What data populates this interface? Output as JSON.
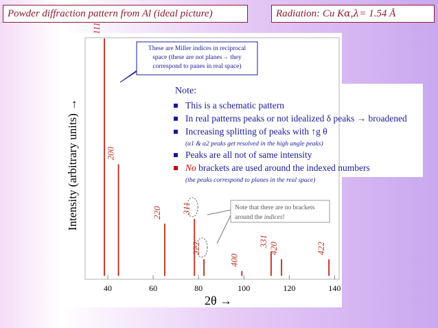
{
  "header": {
    "title": "Powder diffraction pattern from Al (ideal picture)",
    "radiation_prefix": "Radiation: Cu K",
    "radiation_alpha": "α",
    "radiation_sep": ", ",
    "radiation_lambda": "λ",
    "radiation_value": " = 1.54 Å"
  },
  "callout_top": {
    "lines": [
      "These are Miller indices in reciprocal",
      "space (these are not planes→ they",
      "correspond to panes in real space)"
    ]
  },
  "notes": {
    "heading": "Note:",
    "items": [
      {
        "text": "This is a schematic pattern",
        "sub": ""
      },
      {
        "text": "In real patterns peaks or not idealized δ peaks → broadened",
        "sub": ""
      },
      {
        "text": "Increasing splitting of peaks with ↑g θ",
        "sub": "(α1 & α2 peaks get resolved in the high angle peaks)"
      },
      {
        "text": "Peaks are all not of same intensity",
        "sub": ""
      },
      {
        "text_em": "No",
        "text": " brackets are used around the indexed numbers",
        "sub": "(the peaks correspond to planes in the real space)"
      }
    ]
  },
  "callout_bottom": {
    "line1": "Note that there are no brackets",
    "line2_prefix": "around the ",
    "line2_em": "indices",
    "line2_suffix": "!"
  },
  "colors": {
    "peak": "#c0392b",
    "text_blue": "#1a1a99",
    "title": "#8a1c2f",
    "bullet": "#1a1a99",
    "bullet_last": "#cc0000"
  },
  "chart_data": {
    "type": "bar",
    "xlabel": "2θ →",
    "ylabel": "Intensity (arbitrary units) →",
    "xlim": [
      30,
      142
    ],
    "ylim": [
      0,
      100
    ],
    "xticks": [
      40,
      60,
      80,
      100,
      120,
      140
    ],
    "peaks": [
      {
        "x": 38.5,
        "y": 100,
        "label": "111",
        "circled": false
      },
      {
        "x": 44.7,
        "y": 47,
        "label": "200",
        "circled": false
      },
      {
        "x": 65.1,
        "y": 22,
        "label": "220",
        "circled": false
      },
      {
        "x": 78.2,
        "y": 24,
        "label": "311",
        "circled": true
      },
      {
        "x": 82.4,
        "y": 7,
        "label": "222",
        "circled": true
      },
      {
        "x": 99.1,
        "y": 2,
        "label": "400",
        "circled": false
      },
      {
        "x": 112.0,
        "y": 10,
        "label": "331",
        "circled": false
      },
      {
        "x": 116.6,
        "y": 7,
        "label": "420",
        "circled": false
      },
      {
        "x": 137.5,
        "y": 7,
        "label": "422",
        "circled": false
      }
    ]
  }
}
